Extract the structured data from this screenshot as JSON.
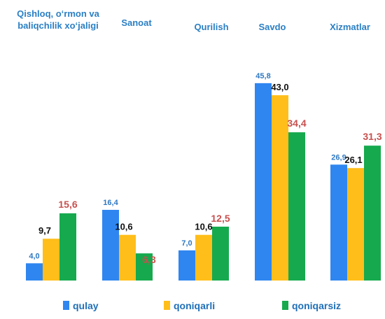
{
  "chart_data": {
    "type": "bar",
    "categories": [
      [
        "Qishloq, o‘rmon va",
        "baliqchilik xo‘jaligi"
      ],
      [
        "Sanoat"
      ],
      [
        "Qurilish"
      ],
      [
        "Savdo"
      ],
      [
        "Xizmatlar"
      ]
    ],
    "series": [
      {
        "name": "qulay",
        "color": "#2f86f0",
        "values": [
          4.0,
          16.4,
          7.0,
          45.8,
          26.9
        ],
        "labels": [
          "4,0",
          "16,4",
          "7,0",
          "45,8",
          "26,9"
        ],
        "label_color": "#2f78c2"
      },
      {
        "name": "qoniqarli",
        "color": "#ffbe1a",
        "values": [
          9.7,
          10.6,
          10.6,
          43.0,
          26.1
        ],
        "labels": [
          "9,7",
          "10,6",
          "10,6",
          "43,0",
          "26,1"
        ],
        "label_color": "#111111"
      },
      {
        "name": "qoniqarsiz",
        "color": "#16a94e",
        "values": [
          15.6,
          6.3,
          12.5,
          34.4,
          31.3
        ],
        "labels": [
          "15,6",
          "6,3",
          "12,5",
          "34,4",
          "31,3"
        ],
        "label_color": "#c8504f"
      }
    ],
    "ylim": [
      0,
      50
    ],
    "grid": false,
    "legend": "bottom"
  }
}
